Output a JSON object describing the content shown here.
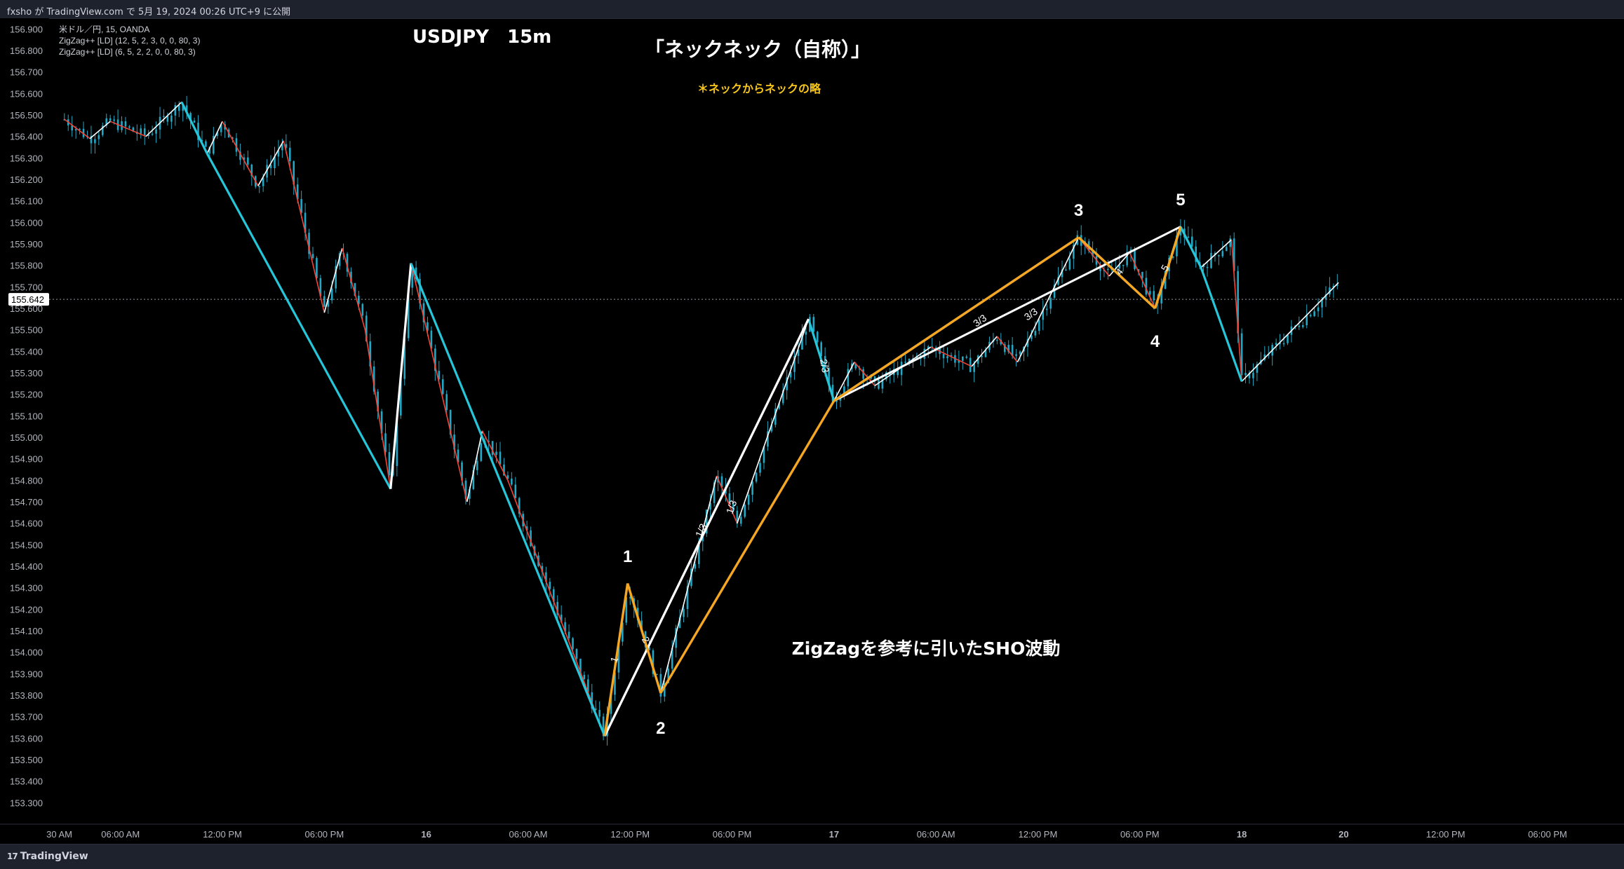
{
  "header": {
    "publish_text": "fxsho が TradingView.com で 5月 19, 2024 00:26 UTC+9 に公開"
  },
  "footer": {
    "brand": "TradingView",
    "brand_mark": "17"
  },
  "chart_data": {
    "type": "line",
    "symbol": "USDJPY",
    "timeframe": "15m",
    "title": "USDJPY　15m",
    "legend": [
      "米ドル／円, 15, OANDA",
      "ZigZag++ [LD] (12, 5, 2, 3, 0, 0, 80, 3)",
      "ZigZag++ [LD] (6, 5, 2, 2, 0, 0, 80, 3)"
    ],
    "annotations": {
      "headline": "「ネックネック（自称）」",
      "subtitle": "＊ネックからネックの略",
      "wave_caption": "ZigZagを参考に引いたSHO波動"
    },
    "colors": {
      "background": "#000000",
      "candles": "#22a7c4",
      "zigzag_major": "#26c6da",
      "zigzag_minor_up": "#ffffff",
      "zigzag_minor_down": "#f44336",
      "sho_wave": "#f5a623",
      "subtitle": "#f5c518",
      "price_line": "#9598a1"
    },
    "ylim": [
      153.2,
      156.95
    ],
    "y_ticks": [
      "156.900",
      "156.800",
      "156.700",
      "156.600",
      "156.500",
      "156.400",
      "156.300",
      "156.200",
      "156.100",
      "156.000",
      "155.900",
      "155.800",
      "155.700",
      "155.600",
      "155.500",
      "155.400",
      "155.300",
      "155.200",
      "155.100",
      "155.000",
      "154.900",
      "154.800",
      "154.700",
      "154.600",
      "154.500",
      "154.400",
      "154.300",
      "154.200",
      "154.100",
      "154.000",
      "153.900",
      "153.800",
      "153.700",
      "153.600",
      "153.500",
      "153.400",
      "153.300"
    ],
    "x_ticks": [
      {
        "label": "30 AM",
        "x": -0.2
      },
      {
        "label": "06:00 AM",
        "x": 1
      },
      {
        "label": "12:00 PM",
        "x": 3
      },
      {
        "label": "06:00 PM",
        "x": 5
      },
      {
        "label": "16",
        "x": 7
      },
      {
        "label": "06:00 AM",
        "x": 9
      },
      {
        "label": "12:00 PM",
        "x": 11
      },
      {
        "label": "06:00 PM",
        "x": 13
      },
      {
        "label": "17",
        "x": 15
      },
      {
        "label": "06:00 AM",
        "x": 17
      },
      {
        "label": "12:00 PM",
        "x": 19
      },
      {
        "label": "06:00 PM",
        "x": 21
      },
      {
        "label": "18",
        "x": 23
      },
      {
        "label": "20",
        "x": 25
      },
      {
        "label": "12:00 PM",
        "x": 27
      },
      {
        "label": "06:00 PM",
        "x": 29
      }
    ],
    "last_price": "155.642",
    "last_price_value": 155.642,
    "zigzag_major": [
      {
        "x": 2.2,
        "y": 156.56
      },
      {
        "x": 2.7,
        "y": 156.32
      },
      {
        "x": 6.3,
        "y": 154.76
      },
      {
        "x": 6.7,
        "y": 155.81
      },
      {
        "x": 10.5,
        "y": 153.61
      },
      {
        "x": 14.5,
        "y": 155.55
      },
      {
        "x": 15.0,
        "y": 155.17
      },
      {
        "x": 19.8,
        "y": 155.93
      },
      {
        "x": 21.3,
        "y": 155.6
      },
      {
        "x": 21.8,
        "y": 155.98
      },
      {
        "x": 22.2,
        "y": 155.79
      },
      {
        "x": 23.0,
        "y": 155.26
      }
    ],
    "zigzag_minor": [
      {
        "x": -0.1,
        "y": 156.48
      },
      {
        "x": 0.4,
        "y": 156.39
      },
      {
        "x": 0.8,
        "y": 156.47
      },
      {
        "x": 1.5,
        "y": 156.4
      },
      {
        "x": 2.2,
        "y": 156.56
      },
      {
        "x": 2.7,
        "y": 156.32
      },
      {
        "x": 3.0,
        "y": 156.47
      },
      {
        "x": 3.7,
        "y": 156.17
      },
      {
        "x": 4.2,
        "y": 156.38
      },
      {
        "x": 5.0,
        "y": 155.58
      },
      {
        "x": 5.35,
        "y": 155.88
      },
      {
        "x": 5.8,
        "y": 155.5
      },
      {
        "x": 6.3,
        "y": 154.76
      },
      {
        "x": 6.7,
        "y": 155.81
      },
      {
        "x": 7.8,
        "y": 154.7
      },
      {
        "x": 8.1,
        "y": 155.03
      },
      {
        "x": 8.6,
        "y": 154.8
      },
      {
        "x": 10.5,
        "y": 153.61
      },
      {
        "x": 10.95,
        "y": 154.32
      },
      {
        "x": 11.6,
        "y": 153.81
      },
      {
        "x": 12.7,
        "y": 154.82
      },
      {
        "x": 13.1,
        "y": 154.6
      },
      {
        "x": 14.5,
        "y": 155.55
      },
      {
        "x": 15.0,
        "y": 155.17
      },
      {
        "x": 15.4,
        "y": 155.35
      },
      {
        "x": 15.8,
        "y": 155.24
      },
      {
        "x": 16.9,
        "y": 155.42
      },
      {
        "x": 17.7,
        "y": 155.33
      },
      {
        "x": 18.2,
        "y": 155.47
      },
      {
        "x": 18.6,
        "y": 155.35
      },
      {
        "x": 19.8,
        "y": 155.93
      },
      {
        "x": 20.4,
        "y": 155.75
      },
      {
        "x": 20.8,
        "y": 155.86
      },
      {
        "x": 21.3,
        "y": 155.6
      },
      {
        "x": 21.8,
        "y": 155.98
      },
      {
        "x": 22.2,
        "y": 155.79
      },
      {
        "x": 22.8,
        "y": 155.92
      },
      {
        "x": 23.0,
        "y": 155.26
      },
      {
        "x": 24.9,
        "y": 155.72
      }
    ],
    "sho_wave": [
      {
        "x": 10.5,
        "y": 153.61
      },
      {
        "x": 10.95,
        "y": 154.32
      },
      {
        "x": 11.6,
        "y": 153.81
      },
      {
        "x": 15.0,
        "y": 155.17
      },
      {
        "x": 19.8,
        "y": 155.93
      },
      {
        "x": 21.3,
        "y": 155.6
      },
      {
        "x": 21.8,
        "y": 155.98
      }
    ],
    "white_lines": [
      {
        "from": {
          "x": 10.5,
          "y": 153.61
        },
        "to": {
          "x": 14.5,
          "y": 155.55
        }
      },
      {
        "from": {
          "x": 15.0,
          "y": 155.17
        },
        "to": {
          "x": 21.8,
          "y": 155.98
        }
      }
    ],
    "wave_labels": [
      {
        "text": "1",
        "x": 10.95,
        "y": 154.42
      },
      {
        "text": "2",
        "x": 11.6,
        "y": 153.62
      },
      {
        "text": "3",
        "x": 19.8,
        "y": 156.03
      },
      {
        "text": "4",
        "x": 21.3,
        "y": 155.42
      },
      {
        "text": "5",
        "x": 21.8,
        "y": 156.08
      }
    ],
    "sub_labels": [
      {
        "text": "1",
        "x": 10.75,
        "y": 153.96,
        "rot": -70
      },
      {
        "text": "2",
        "x": 11.25,
        "y": 154.05,
        "rot": 60
      },
      {
        "text": "1/3",
        "x": 12.45,
        "y": 154.56,
        "rot": -65
      },
      {
        "text": "1/3",
        "x": 13.05,
        "y": 154.67,
        "rot": -70
      },
      {
        "text": "2/3",
        "x": 14.75,
        "y": 155.33,
        "rot": 80
      },
      {
        "text": "3/3",
        "x": 17.9,
        "y": 155.53,
        "rot": -35
      },
      {
        "text": "3/3",
        "x": 18.9,
        "y": 155.56,
        "rot": -35
      },
      {
        "text": "4",
        "x": 20.65,
        "y": 155.76,
        "rot": -50
      },
      {
        "text": "5",
        "x": 21.55,
        "y": 155.78,
        "rot": -60
      }
    ]
  }
}
